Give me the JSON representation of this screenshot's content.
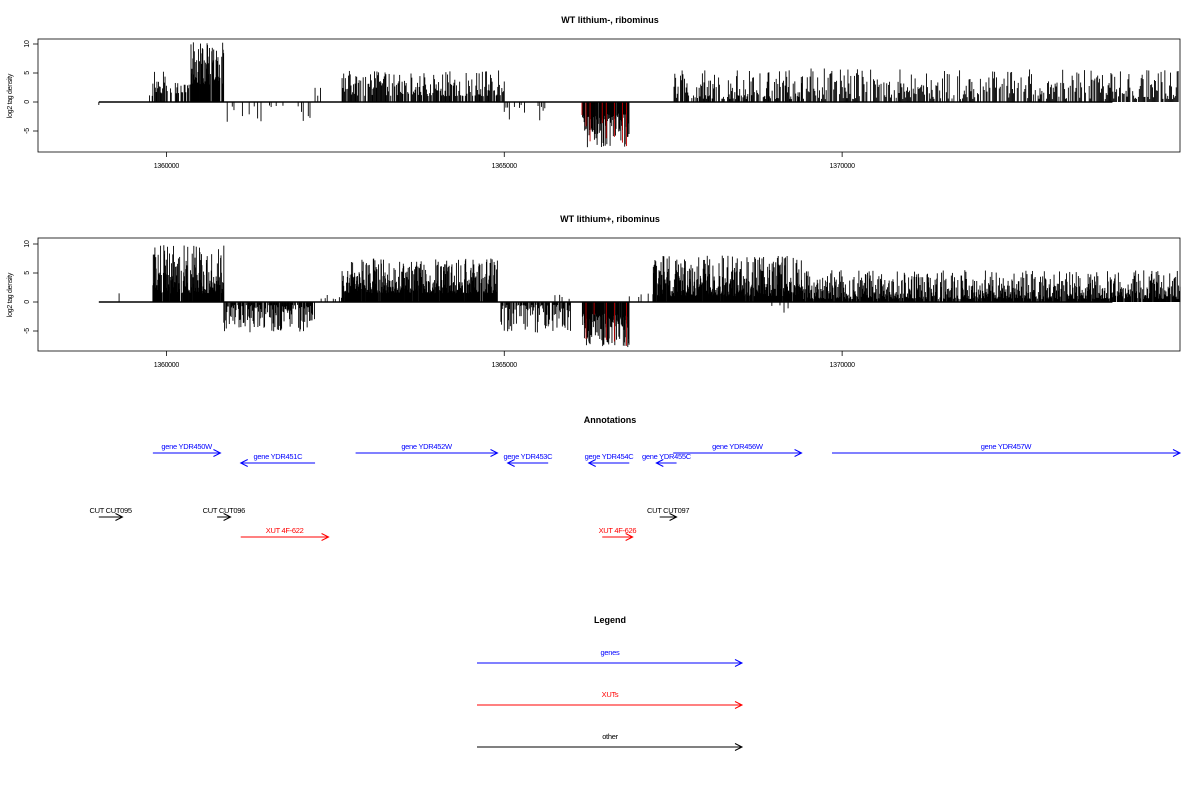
{
  "colors": {
    "genes": "#0000ff",
    "xuts": "#ff0000",
    "other": "#000000",
    "highlight_bar": "#c00000"
  },
  "panels": [
    {
      "title": "WT lithium-, ribominus",
      "ylabel": "log2 tag density"
    },
    {
      "title": "WT lithium+, ribominus",
      "ylabel": "log2 tag density"
    }
  ],
  "annotations": {
    "title": "Annotations",
    "items": [
      {
        "label": "gene YDR450W",
        "type": "gene",
        "strand": "+",
        "start": 1359800,
        "end": 1360800
      },
      {
        "label": "gene YDR451C",
        "type": "gene",
        "strand": "-",
        "start": 1361100,
        "end": 1362200
      },
      {
        "label": "gene YDR452W",
        "type": "gene",
        "strand": "+",
        "start": 1362800,
        "end": 1364900
      },
      {
        "label": "gene YDR453C",
        "type": "gene",
        "strand": "-",
        "start": 1365050,
        "end": 1365650
      },
      {
        "label": "gene YDR454C",
        "type": "gene",
        "strand": "-",
        "start": 1366250,
        "end": 1366850
      },
      {
        "label": "gene YDR455C",
        "type": "gene",
        "strand": "-",
        "start": 1367250,
        "end": 1367550
      },
      {
        "label": "gene YDR456W",
        "type": "gene",
        "strand": "+",
        "start": 1367500,
        "end": 1369400
      },
      {
        "label": "gene YDR457W",
        "type": "gene",
        "strand": "+",
        "start": 1369850,
        "end": 1375000
      },
      {
        "label": "CUT CUT095",
        "type": "other",
        "strand": "+",
        "start": 1359000,
        "end": 1359350
      },
      {
        "label": "CUT CUT096",
        "type": "other",
        "strand": "+",
        "start": 1360750,
        "end": 1360950
      },
      {
        "label": "CUT CUT097",
        "type": "other",
        "strand": "+",
        "start": 1367300,
        "end": 1367550
      },
      {
        "label": "XUT 4F-622",
        "type": "xut",
        "strand": "+",
        "start": 1361100,
        "end": 1362400
      },
      {
        "label": "XUT 4F-626",
        "type": "xut",
        "strand": "+",
        "start": 1366450,
        "end": 1366900
      }
    ]
  },
  "legend": {
    "title": "Legend",
    "items": [
      {
        "label": "genes",
        "type": "gene"
      },
      {
        "label": "XUTs",
        "type": "xut"
      },
      {
        "label": "other",
        "type": "other"
      }
    ]
  },
  "chart_data": [
    {
      "type": "bar",
      "title": "WT lithium-, ribominus",
      "ylabel": "log2 tag density",
      "xlabel": "",
      "xlim": [
        1358100,
        1375000
      ],
      "ylim": [
        -8.5,
        11
      ],
      "xticks": [
        1360000,
        1365000,
        1370000
      ],
      "xtick_labels": [
        "1360000",
        "1365000",
        "1370000"
      ],
      "yticks": [
        -5,
        0,
        5,
        10
      ],
      "ytick_labels": [
        "-5",
        "0",
        "5",
        "10"
      ],
      "baseline": {
        "from": 1359000,
        "to": 1374000,
        "y": 0
      },
      "regions": [
        {
          "x_start": 1359000,
          "x_end": 1359050,
          "sign": -1,
          "min": 0.5,
          "max": 1.5,
          "step": 60,
          "density": 0.5,
          "color": "other"
        },
        {
          "x_start": 1359750,
          "x_end": 1359800,
          "sign": 1,
          "min": 1,
          "max": 2.5,
          "step": 40,
          "density": 0.6,
          "color": "other"
        },
        {
          "x_start": 1359800,
          "x_end": 1360000,
          "sign": 1,
          "min": 1.5,
          "max": 6.8,
          "step": 12,
          "density": 0.8,
          "color": "other"
        },
        {
          "x_start": 1360000,
          "x_end": 1360350,
          "sign": 1,
          "min": 1.5,
          "max": 3.5,
          "step": 12,
          "density": 0.5,
          "color": "other"
        },
        {
          "x_start": 1360350,
          "x_end": 1360850,
          "sign": 1,
          "min": 3,
          "max": 10.3,
          "step": 7,
          "density": 0.95,
          "color": "other"
        },
        {
          "x_start": 1360900,
          "x_end": 1362200,
          "sign": -1,
          "min": 0.5,
          "max": 3.5,
          "step": 25,
          "density": 0.35,
          "color": "other"
        },
        {
          "x_start": 1362200,
          "x_end": 1362300,
          "sign": 1,
          "min": 0.5,
          "max": 2.5,
          "step": 40,
          "density": 0.5,
          "color": "other"
        },
        {
          "x_start": 1362600,
          "x_end": 1365000,
          "sign": 1,
          "min": 1,
          "max": 5.5,
          "step": 12,
          "density": 0.85,
          "color": "other"
        },
        {
          "x_start": 1365000,
          "x_end": 1365650,
          "sign": -1,
          "min": 0.5,
          "max": 3.5,
          "step": 25,
          "density": 0.35,
          "color": "other"
        },
        {
          "x_start": 1366150,
          "x_end": 1366850,
          "sign": -1,
          "min": 2,
          "max": 7.8,
          "step": 8,
          "density": 0.95,
          "color": "other"
        },
        {
          "x_start": 1366150,
          "x_end": 1366850,
          "sign": -1,
          "min": 2,
          "max": 7.8,
          "step": 60,
          "density": 0.5,
          "color": "highlight_bar"
        },
        {
          "x_start": 1367200,
          "x_end": 1367250,
          "sign": 1,
          "min": 1,
          "max": 2.5,
          "step": 40,
          "density": 0.6,
          "color": "other"
        },
        {
          "x_start": 1367500,
          "x_end": 1369400,
          "sign": 1,
          "min": 0.5,
          "max": 5.5,
          "step": 12,
          "density": 0.7,
          "color": "other"
        },
        {
          "x_start": 1369400,
          "x_end": 1375000,
          "sign": 1,
          "min": 0.5,
          "max": 5.8,
          "step": 14,
          "density": 0.75,
          "color": "other"
        }
      ]
    },
    {
      "type": "bar",
      "title": "WT lithium+, ribominus",
      "ylabel": "log2 tag density",
      "xlabel": "",
      "xlim": [
        1358100,
        1375000
      ],
      "ylim": [
        -8.5,
        11
      ],
      "xticks": [
        1360000,
        1365000,
        1370000
      ],
      "xtick_labels": [
        "1360000",
        "1365000",
        "1370000"
      ],
      "yticks": [
        -5,
        0,
        5,
        10
      ],
      "ytick_labels": [
        "-5",
        "0",
        "5",
        "10"
      ],
      "baseline": {
        "from": 1359000,
        "to": 1374000,
        "y": 0
      },
      "regions": [
        {
          "x_start": 1359000,
          "x_end": 1359050,
          "sign": -1,
          "min": 0.5,
          "max": 1.5,
          "step": 60,
          "density": 0.5,
          "color": "other"
        },
        {
          "x_start": 1359150,
          "x_end": 1359350,
          "sign": 1,
          "min": 0.5,
          "max": 3,
          "step": 50,
          "density": 0.6,
          "color": "other"
        },
        {
          "x_start": 1359550,
          "x_end": 1359600,
          "sign": -1,
          "min": 0.5,
          "max": 2,
          "step": 60,
          "density": 0.5,
          "color": "other"
        },
        {
          "x_start": 1359800,
          "x_end": 1360850,
          "sign": 1,
          "min": 1.5,
          "max": 9.8,
          "step": 6,
          "density": 0.95,
          "color": "other"
        },
        {
          "x_start": 1360850,
          "x_end": 1362200,
          "sign": -1,
          "min": 0.5,
          "max": 5.3,
          "step": 9,
          "density": 0.85,
          "color": "other"
        },
        {
          "x_start": 1362200,
          "x_end": 1362600,
          "sign": 1,
          "min": 0.5,
          "max": 1.5,
          "step": 30,
          "density": 0.4,
          "color": "other"
        },
        {
          "x_start": 1362600,
          "x_end": 1364900,
          "sign": 1,
          "min": 1.5,
          "max": 7.5,
          "step": 6,
          "density": 0.95,
          "color": "other"
        },
        {
          "x_start": 1364950,
          "x_end": 1366000,
          "sign": -1,
          "min": 0.5,
          "max": 5.3,
          "step": 10,
          "density": 0.7,
          "color": "other"
        },
        {
          "x_start": 1365750,
          "x_end": 1366150,
          "sign": 1,
          "min": 0.5,
          "max": 1.5,
          "step": 35,
          "density": 0.4,
          "color": "other"
        },
        {
          "x_start": 1366150,
          "x_end": 1366850,
          "sign": -1,
          "min": 2,
          "max": 7.8,
          "step": 6,
          "density": 0.95,
          "color": "other"
        },
        {
          "x_start": 1366150,
          "x_end": 1366850,
          "sign": -1,
          "min": 2,
          "max": 7.8,
          "step": 60,
          "density": 0.5,
          "color": "highlight_bar"
        },
        {
          "x_start": 1366850,
          "x_end": 1367200,
          "sign": 1,
          "min": 0.5,
          "max": 1.5,
          "step": 35,
          "density": 0.4,
          "color": "other"
        },
        {
          "x_start": 1367200,
          "x_end": 1369400,
          "sign": 1,
          "min": 1,
          "max": 8,
          "step": 6,
          "density": 0.95,
          "color": "other"
        },
        {
          "x_start": 1368900,
          "x_end": 1369350,
          "sign": -1,
          "min": 0.5,
          "max": 2,
          "step": 60,
          "density": 0.4,
          "color": "other"
        },
        {
          "x_start": 1369400,
          "x_end": 1375000,
          "sign": 1,
          "min": 0.5,
          "max": 5.5,
          "step": 8,
          "density": 0.9,
          "color": "other"
        }
      ]
    }
  ]
}
